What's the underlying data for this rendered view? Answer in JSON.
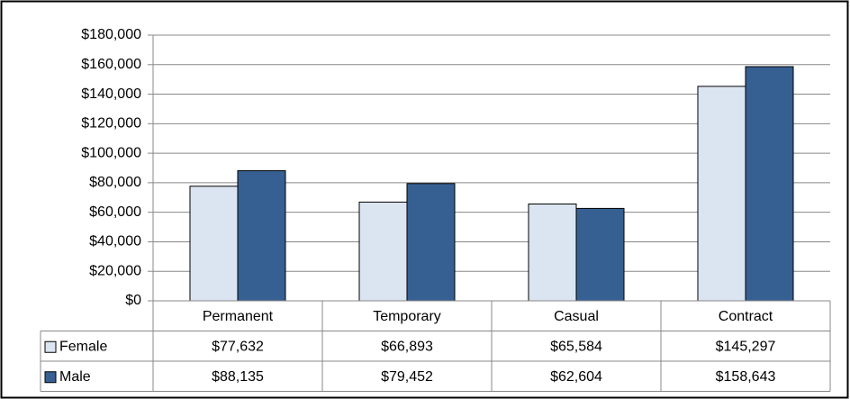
{
  "chart_data": {
    "type": "bar",
    "categories": [
      "Permanent",
      "Temporary",
      "Casual",
      "Contract"
    ],
    "series": [
      {
        "name": "Female",
        "color": "#dbe5f1",
        "values": [
          77632,
          66893,
          65584,
          145297
        ],
        "value_labels": [
          "$77,632",
          "$66,893",
          "$65,584",
          "$145,297"
        ]
      },
      {
        "name": "Male",
        "color": "#376092",
        "values": [
          88135,
          79452,
          62604,
          158643
        ],
        "value_labels": [
          "$88,135",
          "$79,452",
          "$62,604",
          "$158,643"
        ]
      }
    ],
    "ylim": [
      0,
      180000
    ],
    "yticks": [
      {
        "value": 0,
        "label": "$0"
      },
      {
        "value": 20000,
        "label": "$20,000"
      },
      {
        "value": 40000,
        "label": "$40,000"
      },
      {
        "value": 60000,
        "label": "$60,000"
      },
      {
        "value": 80000,
        "label": "$80,000"
      },
      {
        "value": 100000,
        "label": "$100,000"
      },
      {
        "value": 120000,
        "label": "$120,000"
      },
      {
        "value": 140000,
        "label": "$140,000"
      },
      {
        "value": 160000,
        "label": "$160,000"
      },
      {
        "value": 180000,
        "label": "$180,000"
      }
    ],
    "grid": true,
    "legend": "table"
  }
}
